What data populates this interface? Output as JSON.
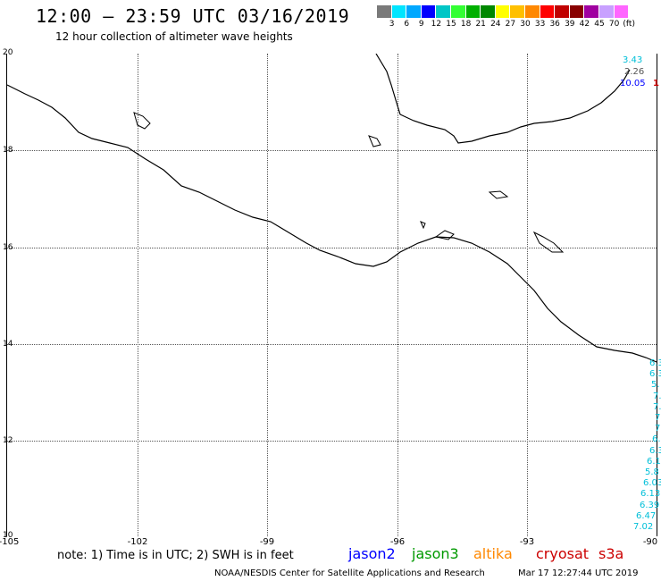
{
  "header": {
    "title": "12:00 – 23:59 UTC 03/16/2019",
    "subtitle": "12 hour collection of altimeter wave heights"
  },
  "legend": {
    "colors": [
      "#7a7a7a",
      "#00e5ff",
      "#00a8ff",
      "#0000ff",
      "#00c6c6",
      "#33ff33",
      "#00b000",
      "#008800",
      "#ffff00",
      "#ffc000",
      "#ff8800",
      "#ff0000",
      "#c00000",
      "#880000",
      "#a000a0",
      "#c8a0ff",
      "#ff66ff",
      "#ffffff"
    ],
    "labels": [
      "3",
      "6",
      "9",
      "12",
      "15",
      "18",
      "21",
      "24",
      "27",
      "30",
      "33",
      "36",
      "39",
      "42",
      "45",
      "70",
      "(ft)"
    ]
  },
  "map": {
    "lat_labels": [
      "20",
      "18",
      "16",
      "14",
      "12",
      "10"
    ],
    "lon_labels": [
      "-105",
      "-102",
      "-99",
      "-96",
      "-93",
      "-90"
    ]
  },
  "track_values_top": [
    {
      "text": "3.43",
      "color": "#00bfd8"
    },
    {
      "text": "2.26",
      "color": "#555555"
    },
    {
      "text": "10.05",
      "color": "#0000ff"
    },
    {
      "text": "1",
      "color": "#cc0000"
    }
  ],
  "track_values_right": [
    "6.3",
    "6.3",
    "5.",
    "7.",
    "7.",
    "7",
    "7",
    "6.",
    "6.3",
    "6.1",
    "5.8",
    "6.03",
    "6.13",
    "6.39",
    "6.47",
    "7.02"
  ],
  "track_value_color": "#00bfd8",
  "footer": {
    "note": "note: 1) Time is in UTC; 2) SWH is in feet",
    "satellites": [
      {
        "name": "jason2",
        "color": "#0000ff"
      },
      {
        "name": "jason3",
        "color": "#009900"
      },
      {
        "name": "altika",
        "color": "#ff8800"
      },
      {
        "name": "cryosat",
        "color": "#cc0000"
      },
      {
        "name": "s3a",
        "color": "#cc0000"
      }
    ],
    "credit": "NOAA/NESDIS Center for Satellite Applications and Research",
    "timestamp": "Mar 17 12:27:44 UTC 2019"
  }
}
